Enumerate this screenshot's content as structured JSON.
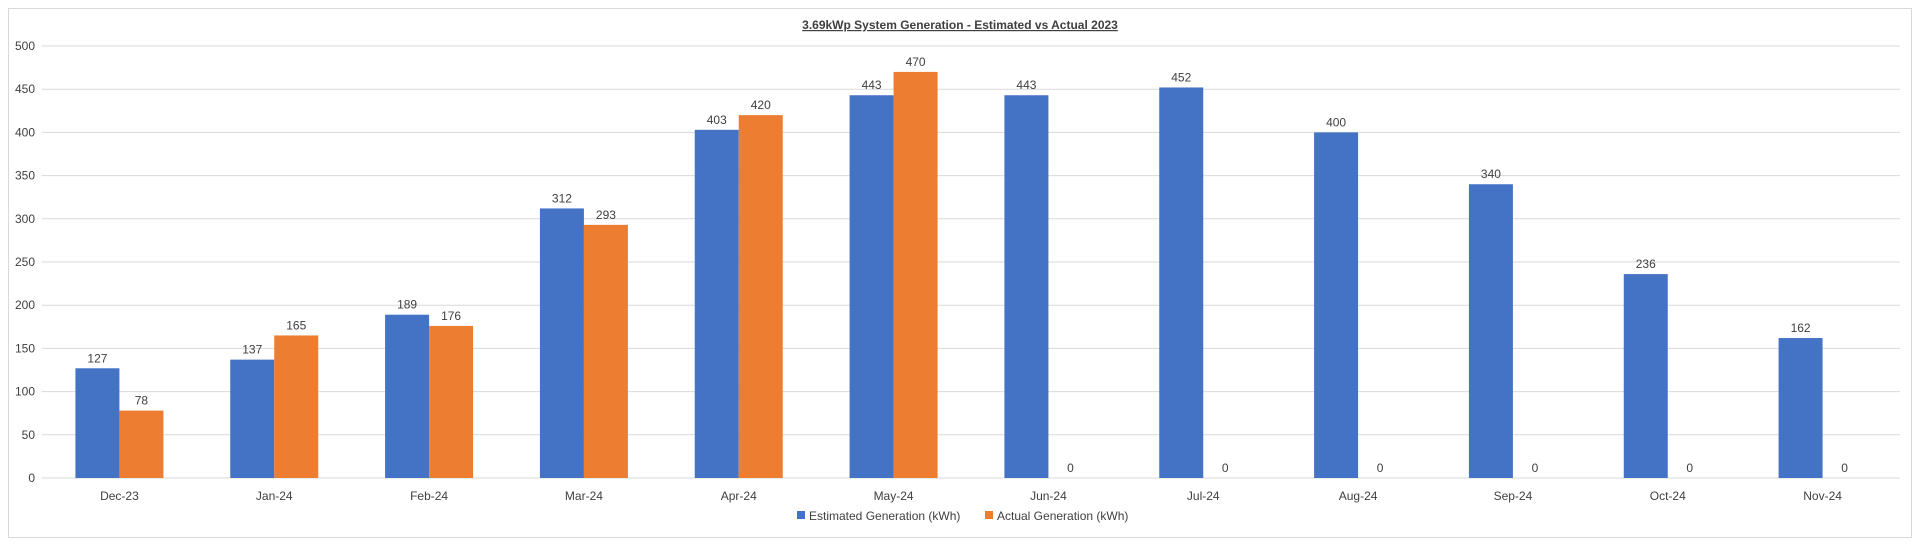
{
  "chart_data": {
    "type": "bar",
    "title": "3.69kWp System Generation - Estimated vs Actual 2023",
    "categories": [
      "Dec-23",
      "Jan-24",
      "Feb-24",
      "Mar-24",
      "Apr-24",
      "May-24",
      "Jun-24",
      "Jul-24",
      "Aug-24",
      "Sep-24",
      "Oct-24",
      "Nov-24"
    ],
    "series": [
      {
        "name": "Estimated Generation (kWh)",
        "color": "#4472c4",
        "values": [
          127,
          137,
          189,
          312,
          403,
          443,
          443,
          452,
          400,
          340,
          236,
          162
        ]
      },
      {
        "name": "Actual Generation (kWh)",
        "color": "#ed7d31",
        "values": [
          78,
          165,
          176,
          293,
          420,
          470,
          0,
          0,
          0,
          0,
          0,
          0
        ]
      }
    ],
    "ylim": [
      0,
      500
    ],
    "yticks": [
      0,
      50,
      100,
      150,
      200,
      250,
      300,
      350,
      400,
      450,
      500
    ],
    "grid": true,
    "legend": "bottom",
    "xlabel": "",
    "ylabel": ""
  }
}
